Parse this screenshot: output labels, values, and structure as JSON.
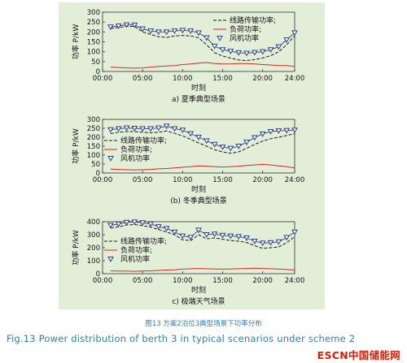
{
  "figure": {
    "caption_cn": "图13  方案2泊位3典型场景下功率分布",
    "caption_en": "Fig.13  Power distribution of berth 3 in typical scenarios under scheme 2",
    "watermark": "ESCN中国储能网"
  },
  "colors": {
    "panel_bg": "#e3eed8",
    "line_power": "#1a1a1a",
    "load": "#d9261c",
    "wind": "#2d3f86",
    "caption": "#2f7fb6",
    "logo": "#d81e06"
  },
  "chart_data": [
    {
      "type": "line",
      "title": "a) 夏季典型场景",
      "xlabel": "时刻",
      "ylabel": "功率 P/kW",
      "xlim": [
        0,
        24
      ],
      "ylim": [
        0,
        300
      ],
      "x_ticks": [
        "00:00",
        "05:00",
        "10:00",
        "15:00",
        "20:00",
        "24:00"
      ],
      "y_ticks": [
        0,
        50,
        100,
        150,
        200,
        250,
        300
      ],
      "legend_position": "upper-right",
      "grid": false,
      "series": [
        {
          "name": "线路传输功率;",
          "style": "dashed",
          "x": [
            1,
            2,
            3,
            4,
            5,
            6,
            7,
            8,
            9,
            10,
            11,
            12,
            13,
            14,
            15,
            16,
            17,
            18,
            19,
            20,
            21,
            22,
            23,
            24
          ],
          "y": [
            218,
            222,
            228,
            228,
            200,
            188,
            176,
            172,
            180,
            182,
            180,
            170,
            135,
            95,
            78,
            68,
            58,
            55,
            60,
            68,
            80,
            100,
            135,
            180
          ]
        },
        {
          "name": "负荷功率;",
          "style": "solid",
          "x": [
            1,
            2,
            3,
            4,
            5,
            6,
            7,
            8,
            9,
            10,
            11,
            12,
            13,
            14,
            15,
            16,
            17,
            18,
            19,
            20,
            21,
            22,
            23,
            24
          ],
          "y": [
            22,
            20,
            18,
            17,
            18,
            22,
            25,
            28,
            30,
            35,
            38,
            42,
            45,
            40,
            38,
            38,
            40,
            40,
            38,
            35,
            33,
            30,
            30,
            25
          ]
        },
        {
          "name": "风机功率",
          "style": "triangle-markers",
          "x": [
            1,
            2,
            3,
            4,
            5,
            6,
            7,
            8,
            9,
            10,
            11,
            12,
            13,
            14,
            15,
            16,
            17,
            18,
            19,
            20,
            21,
            22,
            23,
            24
          ],
          "y": [
            225,
            230,
            236,
            235,
            215,
            205,
            200,
            200,
            205,
            208,
            205,
            195,
            170,
            128,
            110,
            102,
            95,
            92,
            96,
            100,
            110,
            125,
            160,
            195
          ]
        }
      ]
    },
    {
      "type": "line",
      "title": "(b) 冬季典型场景",
      "xlabel": "时刻",
      "ylabel": "功率 P/kW",
      "xlim": [
        0,
        24
      ],
      "ylim": [
        0,
        300
      ],
      "x_ticks": [
        "00:00",
        "05:00",
        "10:00",
        "15:00",
        "20:00",
        "24:00"
      ],
      "y_ticks": [
        0,
        50,
        100,
        150,
        200,
        250,
        300
      ],
      "legend_position": "middle-left",
      "grid": false,
      "series": [
        {
          "name": "线路传输功率;",
          "style": "dashed",
          "x": [
            1,
            2,
            3,
            4,
            5,
            6,
            7,
            8,
            9,
            10,
            11,
            12,
            13,
            14,
            15,
            16,
            17,
            18,
            19,
            20,
            21,
            22,
            23,
            24
          ],
          "y": [
            220,
            228,
            232,
            232,
            228,
            225,
            228,
            235,
            222,
            208,
            188,
            168,
            150,
            130,
            118,
            110,
            118,
            138,
            160,
            178,
            192,
            200,
            210,
            220
          ]
        },
        {
          "name": "负荷功率;",
          "style": "solid",
          "x": [
            1,
            2,
            3,
            4,
            5,
            6,
            7,
            8,
            9,
            10,
            11,
            12,
            13,
            14,
            15,
            16,
            17,
            18,
            19,
            20,
            21,
            22,
            23,
            24
          ],
          "y": [
            22,
            20,
            18,
            17,
            18,
            20,
            23,
            25,
            28,
            32,
            35,
            40,
            38,
            35,
            33,
            35,
            38,
            42,
            45,
            48,
            45,
            40,
            35,
            28
          ]
        },
        {
          "name": "风机功率",
          "style": "triangle-markers",
          "x": [
            1,
            2,
            3,
            4,
            5,
            6,
            7,
            8,
            9,
            10,
            11,
            12,
            13,
            14,
            15,
            16,
            17,
            18,
            19,
            20,
            21,
            22,
            23,
            24
          ],
          "y": [
            242,
            248,
            252,
            250,
            248,
            248,
            252,
            262,
            248,
            240,
            220,
            200,
            180,
            160,
            145,
            138,
            150,
            172,
            198,
            218,
            232,
            236,
            238,
            240
          ]
        }
      ]
    },
    {
      "type": "line",
      "title": "c) 极端天气场景",
      "xlabel": "时刻",
      "ylabel": "功率 P/kW",
      "xlim": [
        0,
        24
      ],
      "ylim": [
        0,
        400
      ],
      "x_ticks": [
        "00:00",
        "05:00",
        "10:00",
        "15:00",
        "20:00",
        "24:00"
      ],
      "y_ticks": [
        0,
        100,
        200,
        300,
        400
      ],
      "legend_position": "middle-left",
      "grid": false,
      "series": [
        {
          "name": "线路传输功率;",
          "style": "dashed",
          "x": [
            1,
            2,
            3,
            4,
            5,
            6,
            7,
            8,
            9,
            10,
            11,
            12,
            13,
            14,
            15,
            16,
            17,
            18,
            19,
            20,
            21,
            22,
            23,
            24
          ],
          "y": [
            352,
            360,
            375,
            378,
            370,
            358,
            340,
            320,
            300,
            260,
            255,
            300,
            268,
            275,
            265,
            255,
            250,
            240,
            215,
            195,
            200,
            205,
            238,
            285
          ]
        },
        {
          "name": "负荷功率;",
          "style": "solid",
          "x": [
            1,
            2,
            3,
            4,
            5,
            6,
            7,
            8,
            9,
            10,
            11,
            12,
            13,
            14,
            15,
            16,
            17,
            18,
            19,
            20,
            21,
            22,
            23,
            24
          ],
          "y": [
            22,
            20,
            20,
            18,
            20,
            22,
            25,
            28,
            30,
            35,
            38,
            40,
            38,
            36,
            35,
            36,
            38,
            40,
            42,
            40,
            38,
            35,
            32,
            28
          ]
        },
        {
          "name": "风机功率",
          "style": "triangle-markers",
          "x": [
            1,
            2,
            3,
            4,
            5,
            6,
            7,
            8,
            9,
            10,
            11,
            12,
            13,
            14,
            15,
            16,
            17,
            18,
            19,
            20,
            21,
            22,
            23,
            24
          ],
          "y": [
            372,
            382,
            395,
            398,
            392,
            382,
            362,
            348,
            320,
            290,
            280,
            335,
            300,
            305,
            295,
            290,
            285,
            275,
            250,
            235,
            238,
            245,
            278,
            320
          ]
        }
      ]
    }
  ]
}
